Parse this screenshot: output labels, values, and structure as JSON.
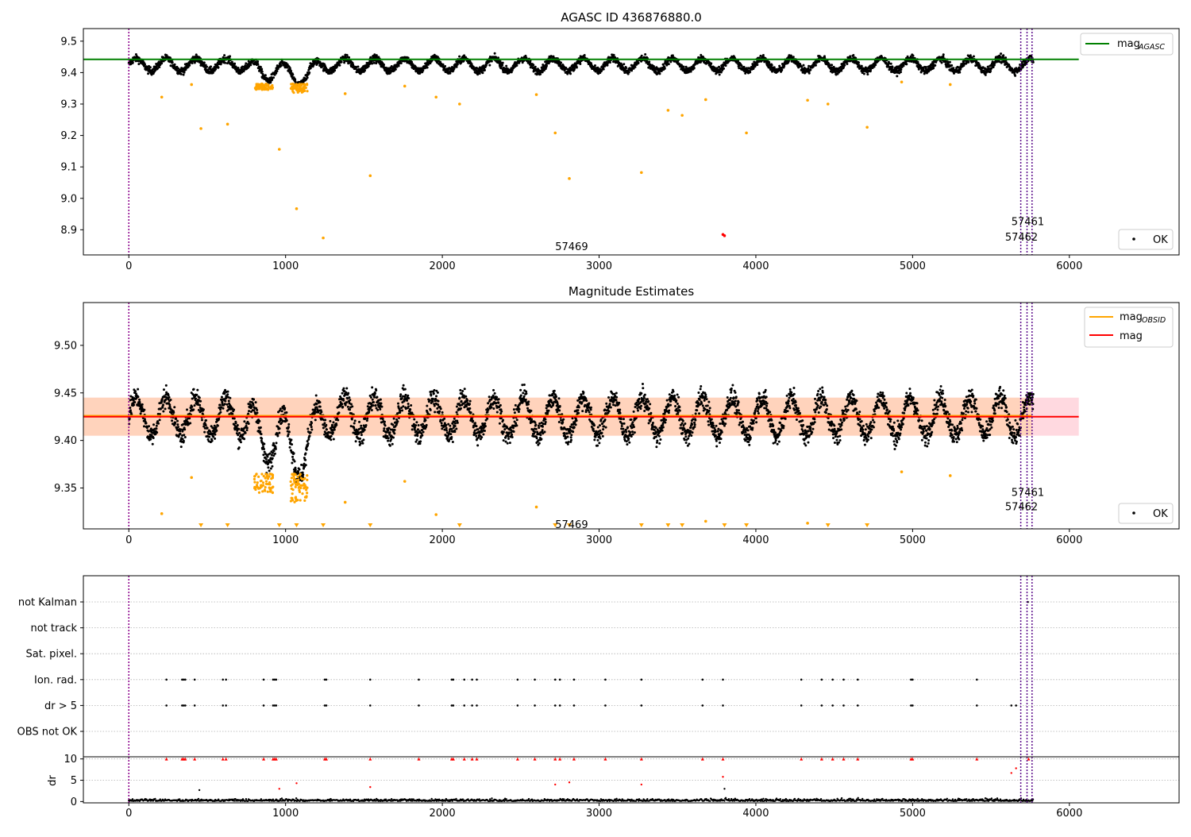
{
  "chart_data": [
    {
      "type": "scatter",
      "title": "AGASC ID 436876880.0",
      "xlim": [
        -290,
        6700
      ],
      "ylim": [
        8.82,
        9.54
      ],
      "xticks": [
        0,
        1000,
        2000,
        3000,
        4000,
        5000,
        6000
      ],
      "yticks": [
        8.9,
        9.0,
        9.1,
        9.2,
        9.3,
        9.4,
        9.5
      ],
      "ytick_labels": [
        "8.9",
        "9.0",
        "9.1",
        "9.2",
        "9.3",
        "9.4",
        "9.5"
      ],
      "hlines": [
        {
          "name": "mag_AGASC",
          "y": 9.442,
          "x_range": [
            -290,
            6060
          ],
          "color": "#008000"
        }
      ],
      "legend": {
        "placement": "top-right",
        "entries": [
          {
            "label": "mag",
            "sub": "AGASC",
            "color": "#008000"
          }
        ]
      },
      "legend2": {
        "placement": "bottom-right",
        "label": "OK"
      },
      "black_points": {
        "name": "OK",
        "color": "#000000",
        "baseline": 9.425,
        "amplitude": 0.02,
        "period": 190,
        "noise": 0.008,
        "x_range": [
          0,
          5770
        ]
      },
      "orange_outliers": [
        [
          210,
          9.322
        ],
        [
          400,
          9.362
        ],
        [
          460,
          9.222
        ],
        [
          630,
          9.236
        ],
        [
          960,
          9.156
        ],
        [
          1070,
          8.967
        ],
        [
          1240,
          8.874
        ],
        [
          1380,
          9.333
        ],
        [
          1540,
          9.072
        ],
        [
          1760,
          9.357
        ],
        [
          1960,
          9.322
        ],
        [
          2110,
          9.3
        ],
        [
          2600,
          9.33
        ],
        [
          2720,
          9.208
        ],
        [
          2810,
          9.063
        ],
        [
          3270,
          9.082
        ],
        [
          3440,
          9.28
        ],
        [
          3530,
          9.264
        ],
        [
          3680,
          9.314
        ],
        [
          3940,
          9.208
        ],
        [
          4330,
          9.312
        ],
        [
          4460,
          9.3
        ],
        [
          4710,
          9.226
        ],
        [
          4930,
          9.37
        ],
        [
          5240,
          9.362
        ]
      ],
      "red_points": [
        [
          3790,
          8.885
        ],
        [
          3800,
          8.881
        ]
      ],
      "vlines_magenta": [
        0
      ],
      "vlines_blue": [
        5690,
        5730,
        5762
      ],
      "annotations": [
        {
          "text": "57461",
          "x": 5630,
          "y": 8.925
        },
        {
          "text": "57462",
          "x": 5590,
          "y": 8.875
        },
        {
          "text": "57469",
          "x": 2720,
          "y": 8.845
        }
      ]
    },
    {
      "type": "scatter",
      "title": "Magnitude Estimates",
      "xlim": [
        -290,
        6700
      ],
      "ylim": [
        9.307,
        9.545
      ],
      "xticks": [
        0,
        1000,
        2000,
        3000,
        4000,
        5000,
        6000
      ],
      "yticks": [
        9.35,
        9.4,
        9.45,
        9.5
      ],
      "ytick_labels": [
        "9.35",
        "9.40",
        "9.45",
        "9.50"
      ],
      "hlines": [
        {
          "name": "mag_OBSID",
          "y": 9.426,
          "x_range": [
            -290,
            5760
          ],
          "color": "#ffa500"
        },
        {
          "name": "mag",
          "y": 9.425,
          "x_range": [
            -290,
            6060
          ],
          "color": "#ff0000"
        }
      ],
      "bands": [
        {
          "y_range": [
            9.405,
            9.445
          ],
          "x_range": [
            -290,
            6060
          ],
          "color": "#ffc0cb"
        },
        {
          "y_range": [
            9.405,
            9.445
          ],
          "x_range": [
            -290,
            5760
          ],
          "color": "#ffd0b0"
        }
      ],
      "legend": {
        "placement": "top-right",
        "entries": [
          {
            "label": "mag",
            "sub": "OBSID",
            "color": "#ffa500"
          },
          {
            "label": "mag",
            "sub": "",
            "color": "#ff0000"
          }
        ]
      },
      "legend2": {
        "placement": "bottom-right",
        "label": "OK"
      },
      "black_points": {
        "name": "OK",
        "color": "#000000",
        "baseline": 9.425,
        "amplitude": 0.02,
        "period": 190,
        "noise": 0.008,
        "x_range": [
          0,
          5770
        ]
      },
      "orange_outliers": [
        [
          210,
          9.323
        ],
        [
          400,
          9.361
        ],
        [
          1380,
          9.335
        ],
        [
          1760,
          9.357
        ],
        [
          1960,
          9.322
        ],
        [
          2600,
          9.33
        ],
        [
          3680,
          9.315
        ],
        [
          4330,
          9.313
        ],
        [
          4930,
          9.367
        ],
        [
          5240,
          9.363
        ]
      ],
      "triangles_at_bottom": [
        460,
        630,
        960,
        1070,
        1240,
        1540,
        2110,
        2720,
        2810,
        3270,
        3440,
        3530,
        3800,
        3940,
        4460,
        4710
      ],
      "vlines_magenta": [
        0
      ],
      "vlines_blue": [
        5690,
        5730,
        5762
      ],
      "annotations": [
        {
          "text": "57461",
          "x": 5630,
          "y": 9.345
        },
        {
          "text": "57462",
          "x": 5590,
          "y": 9.33
        },
        {
          "text": "57469",
          "x": 2720,
          "y": 9.311
        }
      ]
    },
    {
      "type": "scatter",
      "title": "",
      "xlim": [
        -290,
        6700
      ],
      "categories": [
        "not Kalman",
        "not track",
        "Sat. pixel.",
        "Ion. rad.",
        "dr > 5",
        "OBS not OK"
      ],
      "flag_x": {
        "Ion. rad.": [
          240,
          340,
          350,
          360,
          420,
          600,
          620,
          860,
          920,
          930,
          940,
          1250,
          1260,
          1540,
          1850,
          2060,
          2070,
          2140,
          2190,
          2220,
          2480,
          2590,
          2720,
          2750,
          2840,
          3040,
          3270,
          3660,
          3790,
          4290,
          4420,
          4490,
          4560,
          4650,
          4990,
          5000,
          5410
        ],
        "dr > 5": [
          240,
          340,
          350,
          360,
          420,
          600,
          620,
          860,
          920,
          930,
          940,
          1250,
          1260,
          1540,
          1850,
          2060,
          2070,
          2140,
          2190,
          2220,
          2480,
          2590,
          2720,
          2750,
          2840,
          3040,
          3270,
          3660,
          3790,
          4290,
          4420,
          4490,
          4560,
          4650,
          4990,
          5000,
          5410,
          5630,
          5660
        ],
        "not Kalman": [
          5735
        ]
      }
    },
    {
      "type": "scatter",
      "title": "",
      "xlim": [
        -290,
        6700
      ],
      "ylim": [
        -0.3,
        10.5
      ],
      "ylabel": "dr",
      "xticks": [
        0,
        1000,
        2000,
        3000,
        4000,
        5000,
        6000
      ],
      "yticks": [
        0,
        5,
        10
      ],
      "ytick_labels": [
        "0",
        "5",
        "10"
      ],
      "red_triangles_x": [
        240,
        340,
        350,
        360,
        420,
        600,
        620,
        860,
        920,
        930,
        940,
        1250,
        1260,
        1540,
        1850,
        2060,
        2070,
        2140,
        2190,
        2220,
        2480,
        2590,
        2720,
        2750,
        2840,
        3040,
        3270,
        3660,
        3790,
        4290,
        4420,
        4490,
        4560,
        4650,
        4990,
        5000,
        5410,
        5740
      ],
      "red_points": [
        [
          960,
          3.0
        ],
        [
          1070,
          4.3
        ],
        [
          1540,
          3.4
        ],
        [
          2720,
          4.0
        ],
        [
          2810,
          4.5
        ],
        [
          3270,
          4.0
        ],
        [
          3790,
          5.8
        ],
        [
          5630,
          6.7
        ],
        [
          5660,
          7.8
        ]
      ],
      "black_outliers": [
        [
          450,
          2.7
        ],
        [
          3800,
          3.0
        ]
      ]
    }
  ]
}
